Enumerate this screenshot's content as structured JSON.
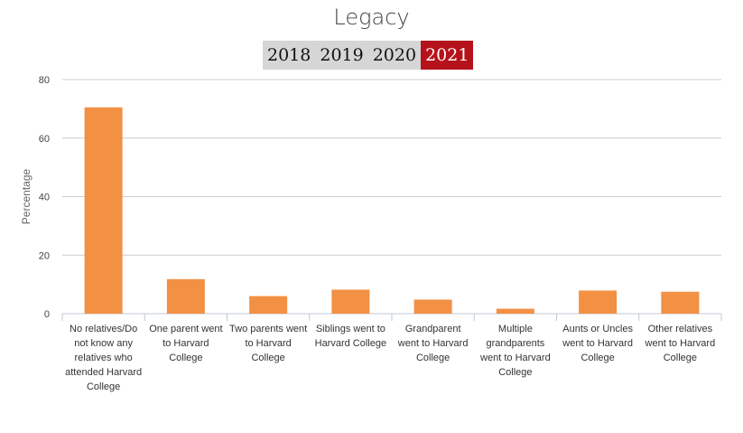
{
  "title": "Legacy",
  "years": [
    {
      "label": "2018",
      "active": false
    },
    {
      "label": "2019",
      "active": false
    },
    {
      "label": "2020",
      "active": false
    },
    {
      "label": "2021",
      "active": true
    }
  ],
  "colors": {
    "bar": "#f29044",
    "active_tab": "#b5121b",
    "tab": "#d6d6d6",
    "grid": "#cccccc"
  },
  "chart_data": {
    "type": "bar",
    "title": "Legacy",
    "xlabel": "",
    "ylabel": "Percentage",
    "ylim": [
      0,
      80
    ],
    "yticks": [
      0,
      20,
      40,
      60,
      80
    ],
    "grid": true,
    "categories": [
      "No relatives/Do not know any relatives who attended Harvard College",
      "One parent went to Harvard College",
      "Two parents went to Harvard College",
      "Siblings went to Harvard College",
      "Grandparent went to Harvard College",
      "Multiple grandparents went to Harvard College",
      "Aunts or Uncles went to Harvard College",
      "Other relatives went to Harvard College"
    ],
    "values": [
      70.5,
      11.8,
      6.0,
      8.2,
      4.8,
      1.7,
      7.9,
      7.5
    ]
  }
}
